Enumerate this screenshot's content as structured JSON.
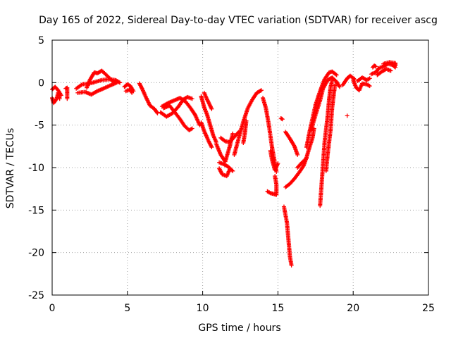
{
  "chart_data": {
    "type": "scatter",
    "title": "Day 165 of 2022, Sidereal Day-to-day VTEC variation (SDTVAR) for receiver ascg",
    "xlabel": "GPS time / hours",
    "ylabel": "SDTVAR / TECUs",
    "xlim": [
      0,
      25
    ],
    "ylim": [
      -25,
      5
    ],
    "xticks": [
      0,
      5,
      10,
      15,
      20,
      25
    ],
    "yticks": [
      5,
      0,
      -5,
      -10,
      -15,
      -20,
      -25
    ],
    "grid": true,
    "marker": "+",
    "color": "#ff0000",
    "tracks": [
      {
        "name": "track-1",
        "points": [
          [
            0.0,
            -1.8
          ],
          [
            0.1,
            -2.4
          ],
          [
            0.3,
            -1.9
          ],
          [
            0.4,
            -1.2
          ],
          [
            0.5,
            -1.9
          ]
        ]
      },
      {
        "name": "track-2",
        "points": [
          [
            0.0,
            -0.8
          ],
          [
            0.2,
            -0.5
          ],
          [
            0.4,
            -0.9
          ],
          [
            0.6,
            -1.5
          ]
        ]
      },
      {
        "name": "track-3",
        "points": [
          [
            0.9,
            -0.7
          ],
          [
            1.0,
            -0.6
          ],
          [
            1.0,
            -1.9
          ]
        ]
      },
      {
        "name": "track-4",
        "points": [
          [
            1.6,
            -0.7
          ],
          [
            2.0,
            -0.2
          ],
          [
            2.5,
            -0.1
          ],
          [
            2.9,
            0.1
          ],
          [
            3.3,
            0.3
          ],
          [
            3.8,
            0.4
          ],
          [
            4.2,
            0.3
          ],
          [
            4.5,
            0.0
          ]
        ]
      },
      {
        "name": "track-5",
        "points": [
          [
            1.7,
            -1.2
          ],
          [
            2.2,
            -1.1
          ],
          [
            2.6,
            -1.4
          ],
          [
            3.0,
            -1.0
          ],
          [
            3.4,
            -0.7
          ],
          [
            3.9,
            -0.3
          ],
          [
            4.3,
            0.0
          ]
        ]
      },
      {
        "name": "track-6",
        "points": [
          [
            2.3,
            -0.6
          ],
          [
            2.5,
            0.3
          ],
          [
            2.8,
            1.2
          ],
          [
            3.0,
            1.1
          ],
          [
            3.3,
            1.4
          ],
          [
            3.6,
            0.9
          ],
          [
            4.0,
            0.2
          ],
          [
            4.3,
            0.1
          ]
        ]
      },
      {
        "name": "track-7",
        "points": [
          [
            4.8,
            -0.5
          ],
          [
            5.0,
            -0.2
          ],
          [
            5.2,
            -0.4
          ],
          [
            5.4,
            -1.0
          ]
        ]
      },
      {
        "name": "track-8",
        "points": [
          [
            4.9,
            -1.0
          ],
          [
            5.2,
            -0.8
          ],
          [
            5.3,
            -1.2
          ]
        ]
      },
      {
        "name": "track-9",
        "points": [
          [
            5.8,
            -0.1
          ],
          [
            6.0,
            -0.8
          ],
          [
            6.2,
            -1.6
          ],
          [
            6.5,
            -2.7
          ],
          [
            6.8,
            -3.1
          ],
          [
            7.0,
            -3.6
          ]
        ]
      },
      {
        "name": "track-10",
        "points": [
          [
            7.3,
            -2.8
          ],
          [
            7.7,
            -2.4
          ],
          [
            8.1,
            -2.1
          ],
          [
            8.5,
            -1.8
          ],
          [
            8.9,
            -2.3
          ],
          [
            9.2,
            -3.0
          ],
          [
            9.5,
            -3.8
          ],
          [
            9.8,
            -5.0
          ]
        ]
      },
      {
        "name": "track-11",
        "points": [
          [
            7.2,
            -3.5
          ],
          [
            7.6,
            -4.0
          ],
          [
            8.0,
            -3.6
          ],
          [
            8.4,
            -2.8
          ],
          [
            8.7,
            -2.0
          ],
          [
            9.0,
            -1.7
          ],
          [
            9.3,
            -1.9
          ]
        ]
      },
      {
        "name": "track-12",
        "points": [
          [
            7.4,
            -3.0
          ],
          [
            7.8,
            -2.7
          ],
          [
            8.2,
            -3.6
          ],
          [
            8.5,
            -4.3
          ],
          [
            8.8,
            -5.1
          ],
          [
            9.1,
            -5.6
          ],
          [
            9.3,
            -5.4
          ]
        ]
      },
      {
        "name": "track-13",
        "points": [
          [
            9.9,
            -1.6
          ],
          [
            10.1,
            -2.9
          ],
          [
            10.3,
            -3.8
          ],
          [
            10.5,
            -5.0
          ],
          [
            10.7,
            -6.2
          ],
          [
            10.9,
            -7.0
          ]
        ]
      },
      {
        "name": "track-14",
        "points": [
          [
            9.9,
            -4.7
          ],
          [
            10.1,
            -5.7
          ],
          [
            10.4,
            -6.9
          ],
          [
            10.6,
            -7.6
          ]
        ]
      },
      {
        "name": "track-15",
        "points": [
          [
            10.1,
            -1.2
          ],
          [
            10.3,
            -2.0
          ],
          [
            10.6,
            -3.1
          ]
        ]
      },
      {
        "name": "track-16",
        "points": [
          [
            10.9,
            -7.2
          ],
          [
            11.2,
            -8.5
          ],
          [
            11.5,
            -9.3
          ],
          [
            11.8,
            -7.5
          ],
          [
            12.0,
            -6.0
          ]
        ]
      },
      {
        "name": "track-17",
        "points": [
          [
            11.1,
            -10.1
          ],
          [
            11.3,
            -10.8
          ],
          [
            11.6,
            -11.0
          ],
          [
            11.8,
            -10.2
          ]
        ]
      },
      {
        "name": "track-18",
        "points": [
          [
            11.1,
            -9.4
          ],
          [
            11.4,
            -9.6
          ],
          [
            11.7,
            -9.9
          ],
          [
            12.0,
            -10.4
          ]
        ]
      },
      {
        "name": "track-19",
        "points": [
          [
            11.2,
            -6.5
          ],
          [
            11.5,
            -6.9
          ],
          [
            11.8,
            -7.0
          ],
          [
            12.1,
            -6.4
          ],
          [
            12.4,
            -5.8
          ]
        ]
      },
      {
        "name": "track-20",
        "points": [
          [
            12.1,
            -8.5
          ],
          [
            12.4,
            -6.5
          ],
          [
            12.7,
            -4.6
          ],
          [
            13.0,
            -3.0
          ],
          [
            13.3,
            -2.0
          ],
          [
            13.6,
            -1.2
          ],
          [
            13.9,
            -0.9
          ]
        ]
      },
      {
        "name": "track-21",
        "points": [
          [
            12.7,
            -7.1
          ],
          [
            12.8,
            -6.0
          ],
          [
            12.9,
            -4.5
          ]
        ]
      },
      {
        "name": "track-22",
        "points": [
          [
            14.0,
            -1.8
          ],
          [
            14.2,
            -3.0
          ],
          [
            14.4,
            -5.0
          ],
          [
            14.6,
            -7.5
          ],
          [
            14.8,
            -9.5
          ],
          [
            14.9,
            -10.5
          ]
        ]
      },
      {
        "name": "track-23",
        "points": [
          [
            14.5,
            -8.0
          ],
          [
            14.6,
            -9.0
          ],
          [
            14.8,
            -10.3
          ],
          [
            15.0,
            -9.5
          ]
        ]
      },
      {
        "name": "track-24",
        "points": [
          [
            14.8,
            -11.0
          ],
          [
            14.9,
            -12.0
          ],
          [
            14.9,
            -13.2
          ],
          [
            14.7,
            -13.1
          ],
          [
            14.5,
            -13.0
          ],
          [
            14.3,
            -12.8
          ]
        ]
      },
      {
        "name": "track-25",
        "points": [
          [
            15.2,
            -4.2
          ],
          [
            15.3,
            -4.3
          ]
        ]
      },
      {
        "name": "track-26",
        "points": [
          [
            15.4,
            -14.6
          ],
          [
            15.6,
            -16.5
          ],
          [
            15.7,
            -18.5
          ],
          [
            15.8,
            -20.5
          ],
          [
            15.9,
            -21.5
          ]
        ]
      },
      {
        "name": "track-27",
        "points": [
          [
            15.5,
            -5.8
          ],
          [
            15.8,
            -6.6
          ],
          [
            16.1,
            -7.5
          ],
          [
            16.3,
            -8.5
          ]
        ]
      },
      {
        "name": "track-28",
        "points": [
          [
            15.5,
            -12.3
          ],
          [
            15.8,
            -11.9
          ],
          [
            16.1,
            -11.3
          ],
          [
            16.4,
            -10.6
          ],
          [
            16.7,
            -9.8
          ],
          [
            16.9,
            -8.8
          ],
          [
            17.1,
            -7.6
          ],
          [
            17.3,
            -6.5
          ],
          [
            17.4,
            -5.4
          ]
        ]
      },
      {
        "name": "track-29",
        "points": [
          [
            16.3,
            -10.0
          ],
          [
            16.6,
            -9.4
          ],
          [
            16.9,
            -8.9
          ]
        ]
      },
      {
        "name": "track-30",
        "points": [
          [
            16.9,
            -7.6
          ],
          [
            17.1,
            -5.8
          ],
          [
            17.3,
            -4.2
          ],
          [
            17.5,
            -2.6
          ],
          [
            17.8,
            -1.0
          ],
          [
            18.1,
            0.4
          ],
          [
            18.4,
            1.2
          ],
          [
            18.6,
            1.3
          ],
          [
            18.9,
            0.9
          ]
        ]
      },
      {
        "name": "track-31",
        "points": [
          [
            17.2,
            -5.6
          ],
          [
            17.5,
            -3.8
          ],
          [
            17.8,
            -2.1
          ],
          [
            18.0,
            -0.7
          ],
          [
            18.3,
            0.3
          ],
          [
            18.6,
            0.6
          ],
          [
            18.9,
            0.1
          ],
          [
            19.1,
            -0.5
          ]
        ]
      },
      {
        "name": "track-32",
        "points": [
          [
            17.8,
            -14.5
          ],
          [
            17.9,
            -12.0
          ],
          [
            18.0,
            -9.5
          ],
          [
            18.1,
            -7.0
          ],
          [
            18.3,
            -4.0
          ],
          [
            18.4,
            -2.0
          ],
          [
            18.5,
            -0.5
          ],
          [
            18.6,
            0.2
          ]
        ]
      },
      {
        "name": "track-33",
        "points": [
          [
            18.2,
            -10.4
          ],
          [
            18.3,
            -8.5
          ],
          [
            18.5,
            -5.5
          ],
          [
            18.6,
            -3.0
          ],
          [
            18.7,
            -1.5
          ],
          [
            18.8,
            -0.2
          ]
        ]
      },
      {
        "name": "track-34",
        "points": [
          [
            19.3,
            -0.3
          ],
          [
            19.6,
            0.5
          ],
          [
            19.8,
            0.8
          ],
          [
            20.1,
            0.4
          ]
        ]
      },
      {
        "name": "track-35",
        "points": [
          [
            19.6,
            -3.9
          ]
        ]
      },
      {
        "name": "track-36",
        "points": [
          [
            20.0,
            0.3
          ],
          [
            20.2,
            -0.6
          ],
          [
            20.4,
            -0.9
          ],
          [
            20.6,
            -0.1
          ],
          [
            20.9,
            -0.2
          ],
          [
            21.1,
            -0.4
          ]
        ]
      },
      {
        "name": "track-37",
        "points": [
          [
            20.3,
            0.2
          ],
          [
            20.6,
            0.6
          ],
          [
            20.9,
            0.3
          ],
          [
            21.1,
            0.5
          ]
        ]
      },
      {
        "name": "track-38",
        "points": [
          [
            21.2,
            1.0
          ],
          [
            21.5,
            1.2
          ],
          [
            21.7,
            1.7
          ],
          [
            22.0,
            1.9
          ],
          [
            22.3,
            2.2
          ],
          [
            22.6,
            2.1
          ],
          [
            22.8,
            1.8
          ]
        ]
      },
      {
        "name": "track-39",
        "points": [
          [
            21.6,
            0.9
          ],
          [
            21.9,
            1.3
          ],
          [
            22.2,
            1.6
          ],
          [
            22.5,
            1.4
          ]
        ]
      },
      {
        "name": "track-40",
        "points": [
          [
            21.3,
            1.8
          ],
          [
            21.4,
            2.0
          ],
          [
            21.5,
            1.9
          ]
        ]
      },
      {
        "name": "track-41",
        "points": [
          [
            22.0,
            2.2
          ],
          [
            22.4,
            2.4
          ],
          [
            22.8,
            2.3
          ],
          [
            22.8,
            2.0
          ]
        ]
      }
    ]
  }
}
